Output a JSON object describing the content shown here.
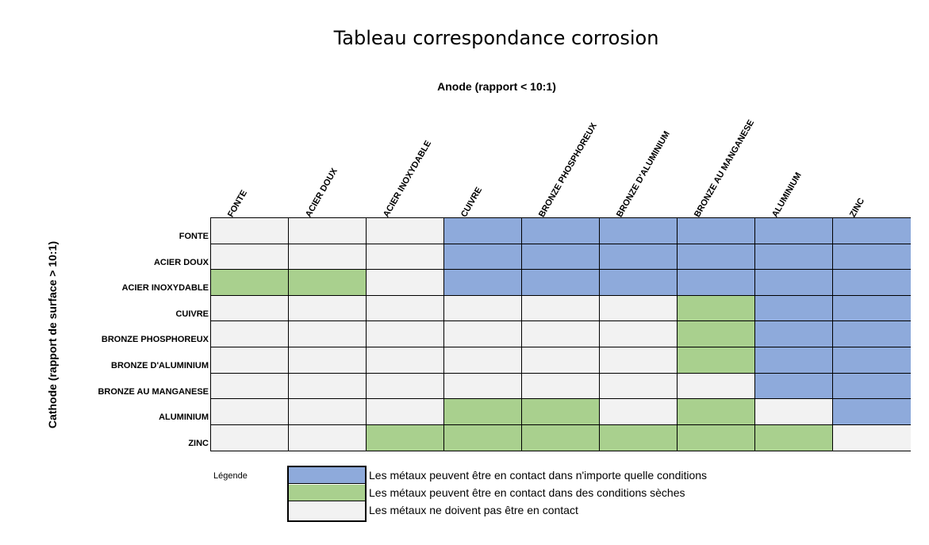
{
  "chart_data": {
    "type": "heatmap",
    "title": "Tableau correspondance corrosion",
    "xlabel": "Anode (rapport < 10:1)",
    "ylabel": "Cathode (rapport de surface > 10:1)",
    "columns": [
      "FONTE",
      "ACIER DOUX",
      "ACIER INOXYDABLE",
      "CUIVRE",
      "BRONZE PHOSPHOREUX",
      "BRONZE D'ALUMINIUM",
      "BRONZE AU MANGANESE",
      "ALUMINIUM",
      "ZINC"
    ],
    "rows": [
      "FONTE",
      "ACIER DOUX",
      "ACIER INOXYDABLE",
      "CUIVRE",
      "BRONZE PHOSPHOREUX",
      "BRONZE D'ALUMINIUM",
      "BRONZE AU MANGANESE",
      "ALUMINIUM",
      "ZINC"
    ],
    "values": [
      [
        "N",
        "N",
        "N",
        "B",
        "B",
        "B",
        "B",
        "B",
        "B"
      ],
      [
        "N",
        "N",
        "N",
        "B",
        "B",
        "B",
        "B",
        "B",
        "B"
      ],
      [
        "G",
        "G",
        "N",
        "B",
        "B",
        "B",
        "B",
        "B",
        "B"
      ],
      [
        "N",
        "N",
        "N",
        "N",
        "N",
        "N",
        "G",
        "B",
        "B"
      ],
      [
        "N",
        "N",
        "N",
        "N",
        "N",
        "N",
        "G",
        "B",
        "B"
      ],
      [
        "N",
        "N",
        "N",
        "N",
        "N",
        "N",
        "G",
        "B",
        "B"
      ],
      [
        "N",
        "N",
        "N",
        "N",
        "N",
        "N",
        "N",
        "B",
        "B"
      ],
      [
        "N",
        "N",
        "N",
        "G",
        "G",
        "N",
        "G",
        "N",
        "B"
      ],
      [
        "N",
        "N",
        "G",
        "G",
        "G",
        "G",
        "G",
        "G",
        "N"
      ]
    ],
    "legend_title": "Légende",
    "legend": [
      {
        "code": "B",
        "color": "#8eaadb",
        "label": "Les métaux peuvent être en contact dans n'importe quelle conditions"
      },
      {
        "code": "G",
        "color": "#a9d08e",
        "label": "Les métaux peuvent être en contact dans des conditions sèches"
      },
      {
        "code": "N",
        "color": "#f2f2f2",
        "label": "Les métaux ne doivent pas être en contact"
      }
    ]
  }
}
